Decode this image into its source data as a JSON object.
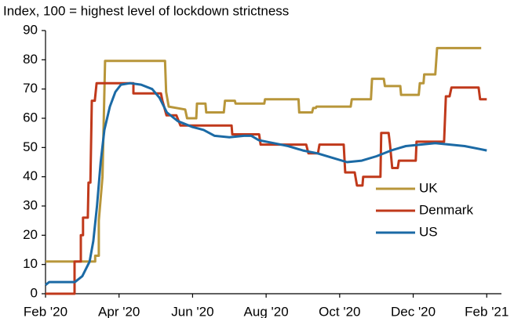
{
  "chart_data": {
    "type": "line",
    "subtitle": "Index, 100 = highest level of lockdown strictness",
    "xlim": [
      0,
      12.4
    ],
    "xticks": [
      {
        "value": 0,
        "label": "Feb '20"
      },
      {
        "value": 2,
        "label": "Apr '20"
      },
      {
        "value": 4,
        "label": "Jun '20"
      },
      {
        "value": 6,
        "label": "Aug '20"
      },
      {
        "value": 8,
        "label": "Oct '20"
      },
      {
        "value": 10,
        "label": "Dec '20"
      },
      {
        "value": 12,
        "label": "Feb '21"
      }
    ],
    "ylim": [
      0,
      90
    ],
    "yticks": [
      0,
      10,
      20,
      30,
      40,
      50,
      60,
      70,
      80,
      90
    ],
    "legend": "lower right",
    "series": [
      {
        "name": "UK",
        "color": "#b8963a",
        "x": [
          0,
          1.35,
          1.35,
          1.45,
          1.45,
          1.55,
          1.62,
          3.25,
          3.28,
          3.35,
          3.8,
          3.85,
          4.1,
          4.12,
          4.35,
          4.37,
          4.85,
          4.88,
          5.15,
          5.17,
          5.95,
          5.97,
          6.88,
          6.9,
          7.25,
          7.28,
          7.35,
          7.37,
          8.3,
          8.33,
          8.85,
          8.88,
          9.2,
          9.23,
          9.65,
          9.67,
          10.15,
          10.18,
          10.28,
          10.3,
          10.6,
          10.65,
          11.85
        ],
        "values": [
          11,
          11,
          13,
          13,
          25,
          40,
          79.6,
          79.6,
          69,
          64,
          63,
          60,
          60,
          65,
          65,
          62,
          62,
          66,
          66,
          65,
          65,
          66.5,
          66.5,
          62,
          62,
          63.5,
          63.5,
          64,
          64,
          66.5,
          66.5,
          73.5,
          73.5,
          71,
          71,
          68,
          68,
          72,
          72,
          75,
          75,
          84,
          84
        ]
      },
      {
        "name": "Denmark",
        "color": "#c0391b",
        "x": [
          0,
          0.79,
          0.79,
          0.96,
          0.96,
          1.02,
          1.02,
          1.15,
          1.17,
          1.22,
          1.26,
          1.34,
          1.39,
          2.39,
          2.39,
          3.14,
          3.18,
          3.29,
          3.56,
          3.67,
          5.06,
          5.08,
          5.81,
          5.85,
          7.09,
          7.15,
          7.41,
          7.45,
          8.11,
          8.15,
          8.41,
          8.47,
          8.62,
          8.64,
          9.11,
          9.13,
          9.33,
          9.37,
          9.43,
          9.58,
          9.61,
          10.07,
          10.09,
          10.84,
          10.89,
          10.99,
          11.04,
          11.78,
          11.82,
          12
        ],
        "values": [
          0,
          0,
          11,
          11,
          20,
          20,
          26,
          26,
          38,
          38,
          66,
          66,
          72,
          72,
          68.5,
          68.5,
          66,
          61,
          61,
          57.5,
          57.5,
          54.5,
          54.5,
          51,
          51,
          48,
          48,
          51,
          51,
          41.5,
          41.5,
          37,
          37,
          40,
          40,
          55,
          55,
          51,
          43,
          43,
          45.5,
          45.5,
          52,
          52,
          67.5,
          67.5,
          70.5,
          70.5,
          66.5,
          66.5
        ]
      },
      {
        "name": "US",
        "color": "#1b6aa5",
        "x": [
          0,
          0.1,
          0.8,
          1.0,
          1.2,
          1.3,
          1.4,
          1.5,
          1.6,
          1.75,
          1.9,
          2.05,
          2.3,
          2.6,
          2.9,
          3.1,
          3.3,
          3.6,
          4,
          4.3,
          4.6,
          5,
          5.4,
          5.6,
          5.8,
          6.2,
          6.6,
          7,
          7.4,
          7.8,
          8.2,
          8.6,
          9,
          9.4,
          9.8,
          10.2,
          10.6,
          11,
          11.4,
          11.8,
          12
        ],
        "values": [
          3,
          4,
          4,
          6,
          11,
          18,
          30,
          45,
          56,
          64,
          69,
          71.5,
          72,
          71.5,
          70,
          67,
          62,
          59,
          57,
          56,
          54,
          53.5,
          54,
          54,
          52.5,
          51.5,
          50.5,
          49,
          48,
          46.5,
          45,
          45.5,
          47,
          49,
          50.5,
          51,
          51.5,
          51,
          50.5,
          49.5,
          49
        ]
      }
    ]
  }
}
